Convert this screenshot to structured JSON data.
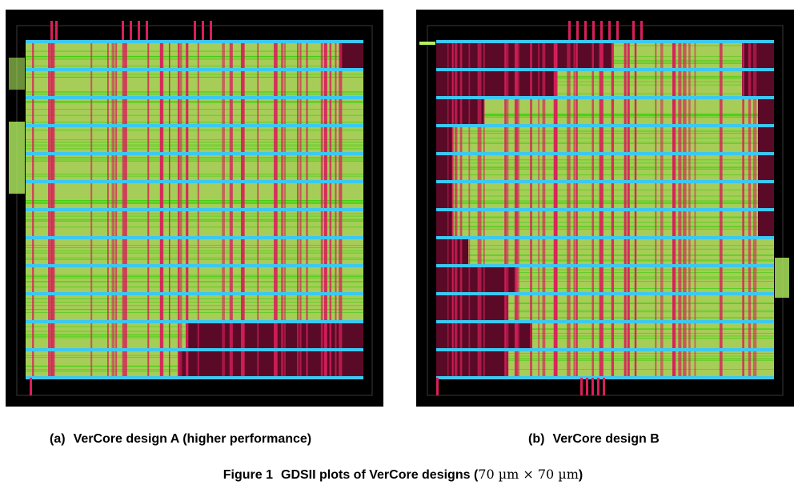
{
  "colors": {
    "background": "#000000",
    "logic": "#b4f060",
    "routing": "#d8205a",
    "power_rail": "#3cc8f0",
    "wire": "#2ad000",
    "outline": "#3a3a3a"
  },
  "figure": {
    "panels": [
      {
        "tag": "(a)",
        "label": "VerCore design A (higher performance)"
      },
      {
        "tag": "(b)",
        "label": "VerCore design B"
      }
    ],
    "caption_number": "Figure 1",
    "caption_text": "GDSII plots of VerCore designs",
    "caption_paren_open": "(",
    "caption_math": "70 µm × 70 µm",
    "caption_paren_close": ")"
  }
}
